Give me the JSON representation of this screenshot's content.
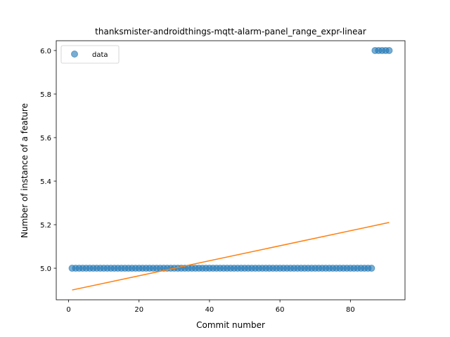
{
  "chart_data": {
    "type": "scatter",
    "title": "thanksmister-androidthings-mqtt-alarm-panel_range_expr-linear",
    "xlabel": "Commit number",
    "ylabel": "Number of instance of a feature",
    "xlim": [
      -3.5,
      95.5
    ],
    "ylim": [
      4.855,
      6.045
    ],
    "xticks": [
      0,
      20,
      40,
      60,
      80
    ],
    "yticks": [
      5.0,
      5.2,
      5.4,
      5.6,
      5.8,
      6.0
    ],
    "ytick_labels": [
      "5.0",
      "5.2",
      "5.4",
      "5.6",
      "5.8",
      "6.0"
    ],
    "grid": false,
    "legend": {
      "placement": "top-left",
      "entries": [
        "data"
      ]
    },
    "series": [
      {
        "name": "data",
        "kind": "scatter",
        "color": "#1f77b4",
        "x": [
          1,
          2,
          3,
          4,
          5,
          6,
          7,
          8,
          9,
          10,
          11,
          12,
          13,
          14,
          15,
          16,
          17,
          18,
          19,
          20,
          21,
          22,
          23,
          24,
          25,
          26,
          27,
          28,
          29,
          30,
          31,
          32,
          33,
          34,
          35,
          36,
          37,
          38,
          39,
          40,
          41,
          42,
          43,
          44,
          45,
          46,
          47,
          48,
          49,
          50,
          51,
          52,
          53,
          54,
          55,
          56,
          57,
          58,
          59,
          60,
          61,
          62,
          63,
          64,
          65,
          66,
          67,
          68,
          69,
          70,
          71,
          72,
          73,
          74,
          75,
          76,
          77,
          78,
          79,
          80,
          81,
          82,
          83,
          84,
          85,
          86,
          87,
          88,
          89,
          90,
          91
        ],
        "y": [
          5,
          5,
          5,
          5,
          5,
          5,
          5,
          5,
          5,
          5,
          5,
          5,
          5,
          5,
          5,
          5,
          5,
          5,
          5,
          5,
          5,
          5,
          5,
          5,
          5,
          5,
          5,
          5,
          5,
          5,
          5,
          5,
          5,
          5,
          5,
          5,
          5,
          5,
          5,
          5,
          5,
          5,
          5,
          5,
          5,
          5,
          5,
          5,
          5,
          5,
          5,
          5,
          5,
          5,
          5,
          5,
          5,
          5,
          5,
          5,
          5,
          5,
          5,
          5,
          5,
          5,
          5,
          5,
          5,
          5,
          5,
          5,
          5,
          5,
          5,
          5,
          5,
          5,
          5,
          5,
          5,
          5,
          5,
          5,
          5,
          5,
          6,
          6,
          6,
          6,
          6
        ]
      },
      {
        "kind": "line",
        "color": "#ff7f0e",
        "x": [
          1,
          91
        ],
        "y": [
          4.9,
          5.21
        ]
      }
    ]
  }
}
